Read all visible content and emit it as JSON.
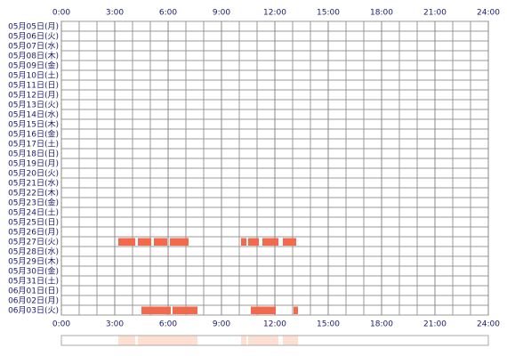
{
  "chart_data": {
    "type": "timeline",
    "categories": [
      "05月05日(月)",
      "05月06日(火)",
      "05月07日(水)",
      "05月08日(木)",
      "05月09日(金)",
      "05月10日(土)",
      "05月11日(日)",
      "05月12日(月)",
      "05月13日(火)",
      "05月14日(水)",
      "05月15日(木)",
      "05月16日(金)",
      "05月17日(土)",
      "05月18日(日)",
      "05月19日(月)",
      "05月20日(火)",
      "05月21日(水)",
      "05月22日(木)",
      "05月23日(金)",
      "05月24日(土)",
      "05月25日(日)",
      "05月26日(月)",
      "05月27日(火)",
      "05月28日(水)",
      "05月29日(木)",
      "05月30日(金)",
      "05月31日(土)",
      "06月01日(日)",
      "06月02日(月)",
      "06月03日(火)"
    ],
    "intervals": [
      [],
      [],
      [],
      [],
      [],
      [],
      [],
      [],
      [],
      [],
      [],
      [],
      [],
      [],
      [],
      [],
      [],
      [],
      [],
      [],
      [],
      [],
      [
        [
          3.2,
          4.15
        ],
        [
          4.3,
          5.05
        ],
        [
          5.2,
          5.95
        ],
        [
          6.1,
          7.15
        ],
        [
          10.1,
          10.4
        ],
        [
          10.5,
          11.1
        ],
        [
          11.3,
          12.2
        ],
        [
          12.45,
          13.2
        ]
      ],
      [],
      [],
      [],
      [],
      [],
      [],
      [
        [
          4.5,
          6.15
        ],
        [
          6.25,
          7.65
        ],
        [
          10.65,
          12.05
        ],
        [
          13.05,
          13.3
        ]
      ]
    ],
    "color": "#f26a4b",
    "summary_color": "#fde0d2",
    "xlim": [
      0,
      24
    ],
    "xticks": [
      {
        "value": 0,
        "label": "0:00"
      },
      {
        "value": 3,
        "label": "3:00"
      },
      {
        "value": 6,
        "label": "6:00"
      },
      {
        "value": 9,
        "label": "9:00"
      },
      {
        "value": 12,
        "label": "12:00"
      },
      {
        "value": 15,
        "label": "15:00"
      },
      {
        "value": 18,
        "label": "18:00"
      },
      {
        "value": 21,
        "label": "21:00"
      },
      {
        "value": 24,
        "label": "24:00"
      }
    ]
  }
}
